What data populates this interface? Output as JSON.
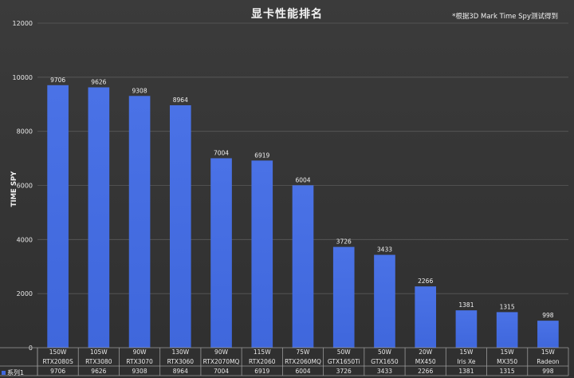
{
  "chart_data": {
    "type": "bar",
    "title": "显卡性能排名",
    "note": "*根据3D Mark Time Spy测试得到",
    "ylabel": "TIME SPY",
    "ylim": [
      0,
      12000
    ],
    "yticks": [
      0,
      2000,
      4000,
      6000,
      8000,
      10000,
      12000
    ],
    "grid": true,
    "bar_color": "#3f67dc",
    "categories": [
      [
        "150W",
        "RTX2080S"
      ],
      [
        "105W",
        "RTX3080"
      ],
      [
        "90W",
        "RTX3070"
      ],
      [
        "130W",
        "RTX3060"
      ],
      [
        "90W",
        "RTX2070MQ"
      ],
      [
        "115W",
        "RTX2060"
      ],
      [
        "75W",
        "RTX2060MQ"
      ],
      [
        "50W",
        "GTX1650Ti"
      ],
      [
        "50W",
        "GTX1650"
      ],
      [
        "20W",
        "MX450"
      ],
      [
        "15W",
        "Iris Xe"
      ],
      [
        "15W",
        "MX350"
      ],
      [
        "15W",
        "Radeon"
      ]
    ],
    "series": [
      {
        "name": "系列1",
        "values": [
          9706,
          9626,
          9308,
          8964,
          7004,
          6919,
          6004,
          3726,
          3433,
          2266,
          1381,
          1315,
          998
        ]
      }
    ]
  }
}
